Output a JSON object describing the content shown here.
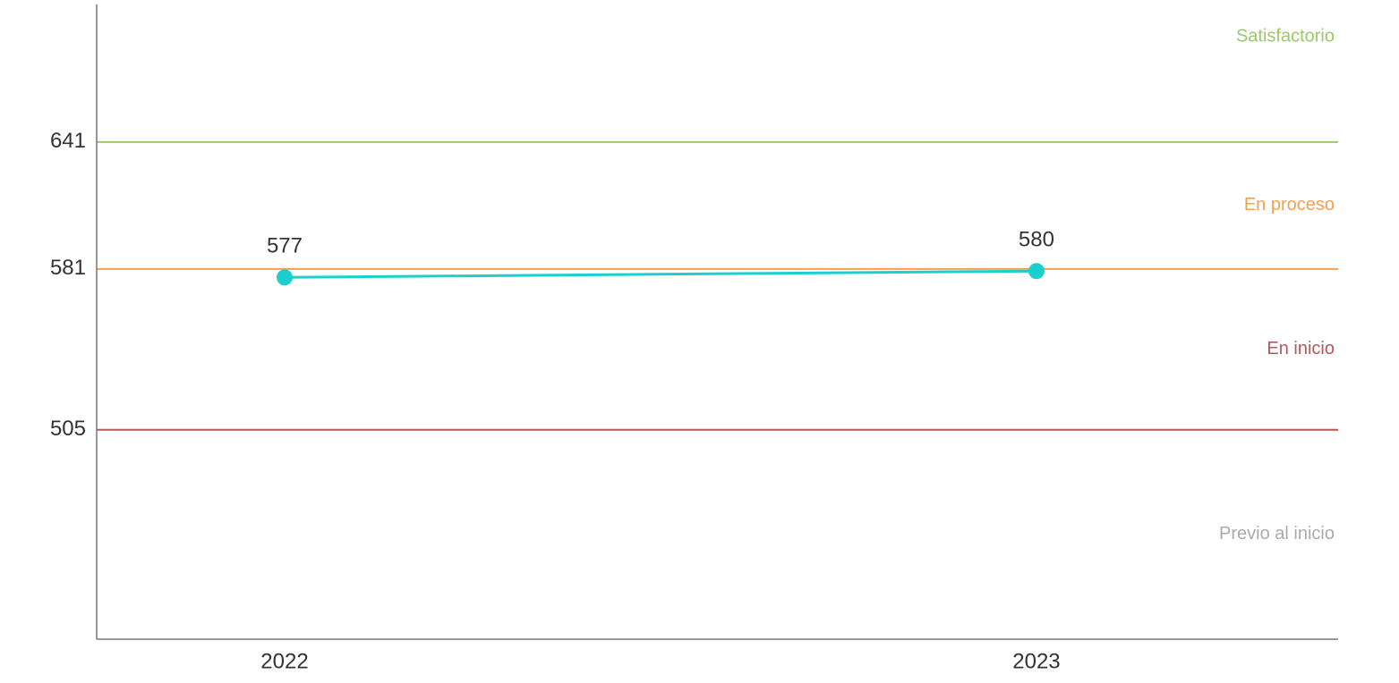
{
  "chart_data": {
    "type": "line",
    "categories": [
      "2022",
      "2023"
    ],
    "values": [
      577,
      580
    ],
    "color": "#1ccfcf",
    "ylim": [
      406,
      706
    ],
    "yticks": [
      505,
      581,
      641
    ],
    "bands": [
      {
        "label": "Previo al inicio",
        "color": "#aaaaaa"
      },
      {
        "label": "En inicio",
        "color": "#b5585a"
      },
      {
        "label": "En proceso",
        "color": "#f5a04f"
      },
      {
        "label": "Satisfactorio",
        "color": "#9bc96a"
      }
    ]
  }
}
